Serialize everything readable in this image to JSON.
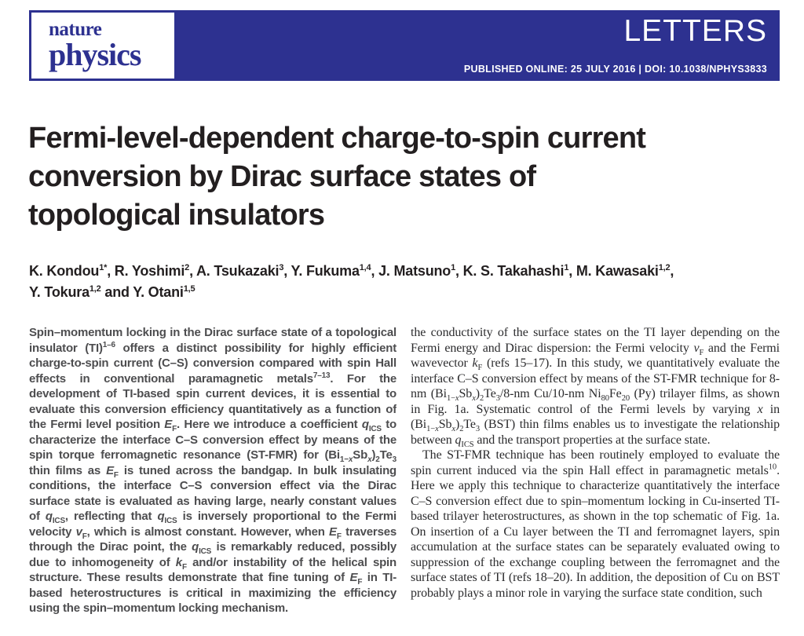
{
  "masthead": {
    "brand": {
      "line1": "nature",
      "line2": "physics"
    },
    "section_label": "LETTERS",
    "published_line": "PUBLISHED ONLINE: 25 JULY 2016 | DOI: 10.1038/NPHYS3833",
    "colors": {
      "banner": "#2d3190",
      "brand_text": "#2d3190",
      "banner_text": "#ffffff"
    }
  },
  "article": {
    "title_lines": [
      "Fermi-level-dependent charge-to-spin current",
      "conversion by Dirac surface states of",
      "topological insulators"
    ],
    "author_lines": [
      "K. Kondou^{1*}, R. Yoshimi^{2}, A. Tsukazaki^{3}, Y. Fukuma^{1,4}, J. Matsuno^{1}, K. S. Takahashi^{1}, M. Kawasaki^{1,2},",
      "Y. Tokura^{1,2} and Y. Otani^{1,5}"
    ],
    "abstract": "Spin–momentum locking in the Dirac surface state of a topological insulator (TI)^{1–6} offers a distinct possibility for highly efficient charge-to-spin current (C–S) conversion compared with spin Hall effects in conventional paramagnetic metals^{7–13}. For the development of TI-based spin current devices, it is essential to evaluate this conversion efficiency quantitatively as a function of the Fermi level position *E*~{F}. Here we introduce a coefficient *q*~{ICS} to characterize the interface C–S conversion effect by means of the spin torque ferromagnetic resonance (ST-FMR) for (Bi~{1−*x*}Sb~{*x*})~{2}Te~{3} thin films as *E*~{F} is tuned across the bandgap. In bulk insulating conditions, the interface C–S conversion effect via the Dirac surface state is evaluated as having large, nearly constant values of *q*~{ICS}, reflecting that *q*~{ICS} is inversely proportional to the Fermi velocity *v*~{F}, which is almost constant. However, when *E*~{F} traverses through the Dirac point, the *q*~{ICS} is remarkably reduced, possibly due to inhomogeneity of *k*~{F} and/or instability of the helical spin structure. These results demonstrate that fine tuning of *E*~{F} in TI-based heterostructures is critical in maximizing the efficiency using the spin–momentum locking mechanism.",
    "body_paragraphs": [
      {
        "indent": false,
        "text": "the conductivity of the surface states on the TI layer depending on the Fermi energy and Dirac dispersion: the Fermi velocity *v*~{F} and the Fermi wavevector *k*~{F} (refs 15–17). In this study, we quantitatively evaluate the interface C–S conversion effect by means of the ST-FMR technique for 8-nm (Bi~{1−*x*}Sb~{*x*})~{2}Te~{3}/8-nm Cu/10-nm Ni~{80}Fe~{20} (Py) trilayer films, as shown in Fig. 1a. Systematic control of the Fermi levels by varying *x* in (Bi~{1−*x*}Sb~{*x*})~{2}Te~{3} (BST) thin films enables us to investigate the relationship between *q*~{ICS} and the transport properties at the surface state."
      },
      {
        "indent": true,
        "text": "The ST-FMR technique has been routinely employed to evaluate the spin current induced via the spin Hall effect in paramagnetic metals^{10}. Here we apply this technique to characterize quantitatively the interface C–S conversion effect due to spin–momentum locking in Cu-inserted TI-based trilayer heterostructures, as shown in the top schematic of Fig. 1a. On insertion of a Cu layer between the TI and ferromagnet layers, spin accumulation at the surface states can be separately evaluated owing to suppression of the exchange coupling between the ferromagnet and the surface states of TI (refs 18–20). In addition, the deposition of Cu on BST probably plays a minor role in varying the surface state condition, such"
      }
    ]
  }
}
